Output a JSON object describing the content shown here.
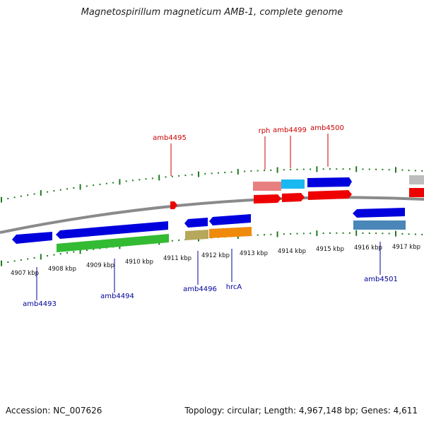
{
  "title": "Magnetospirillum magneticum AMB-1, complete genome",
  "accession": "Accession: NC_007626",
  "summary": "Topology: circular; Length: 4,967,148 bp; Genes: 4,611",
  "colors": {
    "backbone": "#8a8a8a",
    "ruler": "#1f7a1f",
    "label_forward": "#cc0000",
    "label_reverse": "#000099"
  },
  "ruler_labels": [
    "4907 kbp",
    "4908 kbp",
    "4909 kbp",
    "4910 kbp",
    "4911 kbp",
    "4912 kbp",
    "4913 kbp",
    "4914 kbp",
    "4915 kbp",
    "4916 kbp",
    "4917 kbp"
  ],
  "gene_labels": [
    {
      "name": "amb4495",
      "strand": "forward"
    },
    {
      "name": "rph",
      "strand": "forward"
    },
    {
      "name": "amb4499",
      "strand": "forward"
    },
    {
      "name": "amb4500",
      "strand": "forward"
    },
    {
      "name": "amb4493",
      "strand": "reverse"
    },
    {
      "name": "amb4494",
      "strand": "reverse"
    },
    {
      "name": "amb4496",
      "strand": "reverse"
    },
    {
      "name": "hrcA",
      "strand": "reverse"
    },
    {
      "name": "amb4501",
      "strand": "reverse"
    }
  ]
}
